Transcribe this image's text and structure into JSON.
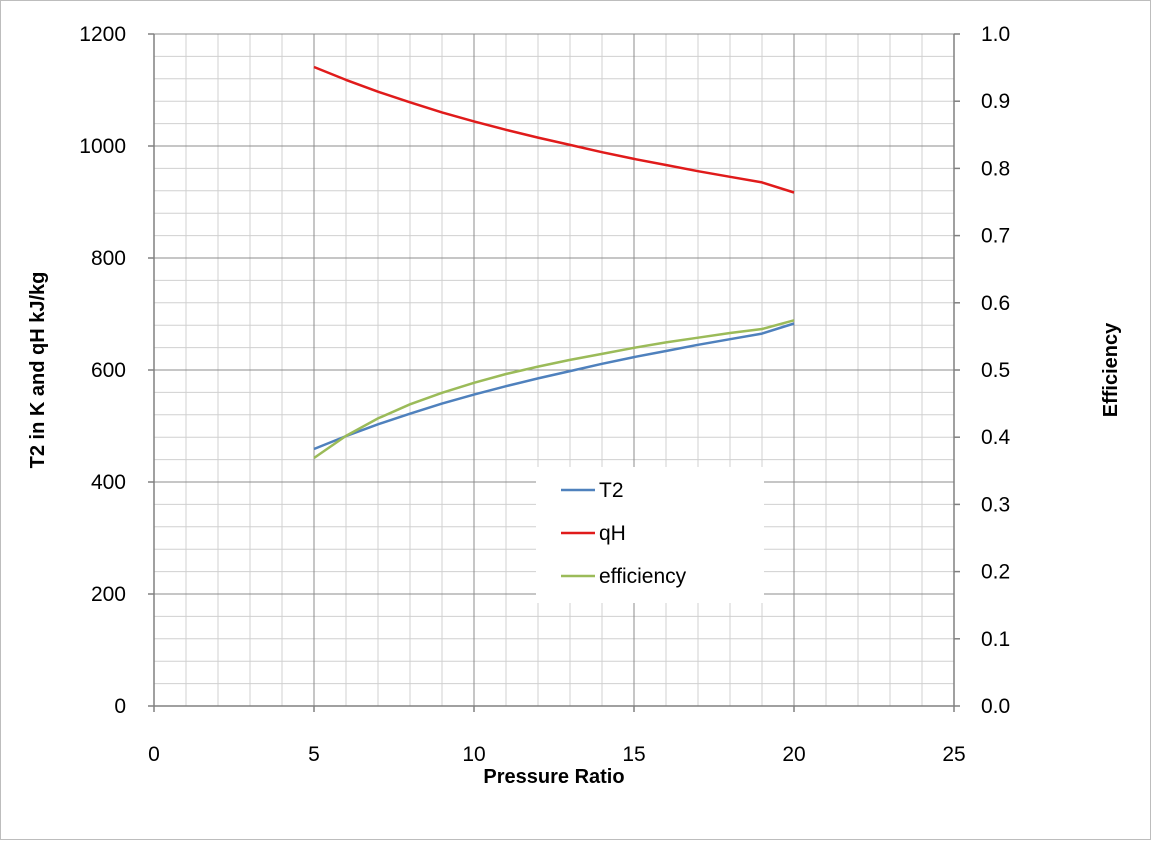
{
  "chart_data": {
    "type": "line",
    "xlabel": "Pressure Ratio",
    "ylabel": "T2 in K and qH kJ/kg",
    "y2label": "Efficiency",
    "xlim": [
      0,
      25
    ],
    "ylim": [
      0,
      1200
    ],
    "y2lim": [
      0,
      1.0
    ],
    "xticks": [
      "0",
      "5",
      "10",
      "15",
      "20",
      "25"
    ],
    "yticks": [
      "0",
      "200",
      "400",
      "600",
      "800",
      "1000",
      "1200"
    ],
    "y2ticks": [
      "0.0",
      "0.1",
      "0.2",
      "0.3",
      "0.4",
      "0.5",
      "0.6",
      "0.7",
      "0.8",
      "0.9",
      "1.0"
    ],
    "grid": true,
    "legend_position": "center-right",
    "x": [
      5,
      6,
      7,
      8,
      9,
      10,
      11,
      12,
      13,
      14,
      15,
      16,
      17,
      18,
      19,
      20
    ],
    "series": [
      {
        "name": "T2",
        "axis": "left",
        "color": "#4f81bd",
        "values": [
          459,
          482,
          503,
          522,
          540,
          556,
          571,
          585,
          598,
          611,
          623,
          634,
          645,
          655,
          665,
          683
        ]
      },
      {
        "name": "qH",
        "axis": "left",
        "color": "#e01b1b",
        "values": [
          1141,
          1118,
          1097,
          1078,
          1060,
          1044,
          1029,
          1015,
          1002,
          989,
          977,
          966,
          955,
          945,
          935,
          917
        ]
      },
      {
        "name": "efficiency",
        "axis": "right",
        "color": "#9bbb59",
        "values": [
          0.369,
          0.402,
          0.428,
          0.449,
          0.466,
          0.481,
          0.494,
          0.505,
          0.515,
          0.524,
          0.533,
          0.541,
          0.548,
          0.555,
          0.561,
          0.574
        ]
      }
    ]
  }
}
